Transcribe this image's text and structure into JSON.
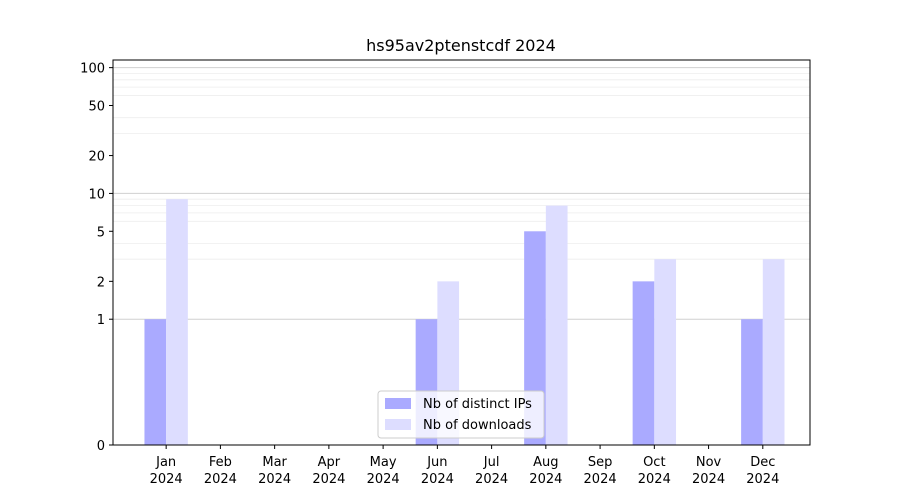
{
  "chart_data": {
    "type": "bar",
    "title": "hs95av2ptenstcdf 2024",
    "xlabel": "",
    "ylabel": "",
    "y_scale": "symlog",
    "yticks": [
      0,
      1,
      2,
      5,
      10,
      20,
      50,
      100
    ],
    "ylim": [
      0,
      115
    ],
    "grid": "y (major and minor)",
    "legend_position": "lower center",
    "categories": [
      [
        "Jan",
        "2024"
      ],
      [
        "Feb",
        "2024"
      ],
      [
        "Mar",
        "2024"
      ],
      [
        "Apr",
        "2024"
      ],
      [
        "May",
        "2024"
      ],
      [
        "Jun",
        "2024"
      ],
      [
        "Jul",
        "2024"
      ],
      [
        "Aug",
        "2024"
      ],
      [
        "Sep",
        "2024"
      ],
      [
        "Oct",
        "2024"
      ],
      [
        "Nov",
        "2024"
      ],
      [
        "Dec",
        "2024"
      ]
    ],
    "series": [
      {
        "name": "Nb of distinct IPs",
        "color": "#aaaaff",
        "values": [
          1,
          0,
          0,
          0,
          0,
          1,
          0,
          5,
          0,
          2,
          0,
          1
        ]
      },
      {
        "name": "Nb of downloads",
        "color": "#ddddff",
        "values": [
          9,
          0,
          0,
          0,
          0,
          2,
          0,
          8,
          0,
          3,
          0,
          3
        ]
      }
    ]
  }
}
